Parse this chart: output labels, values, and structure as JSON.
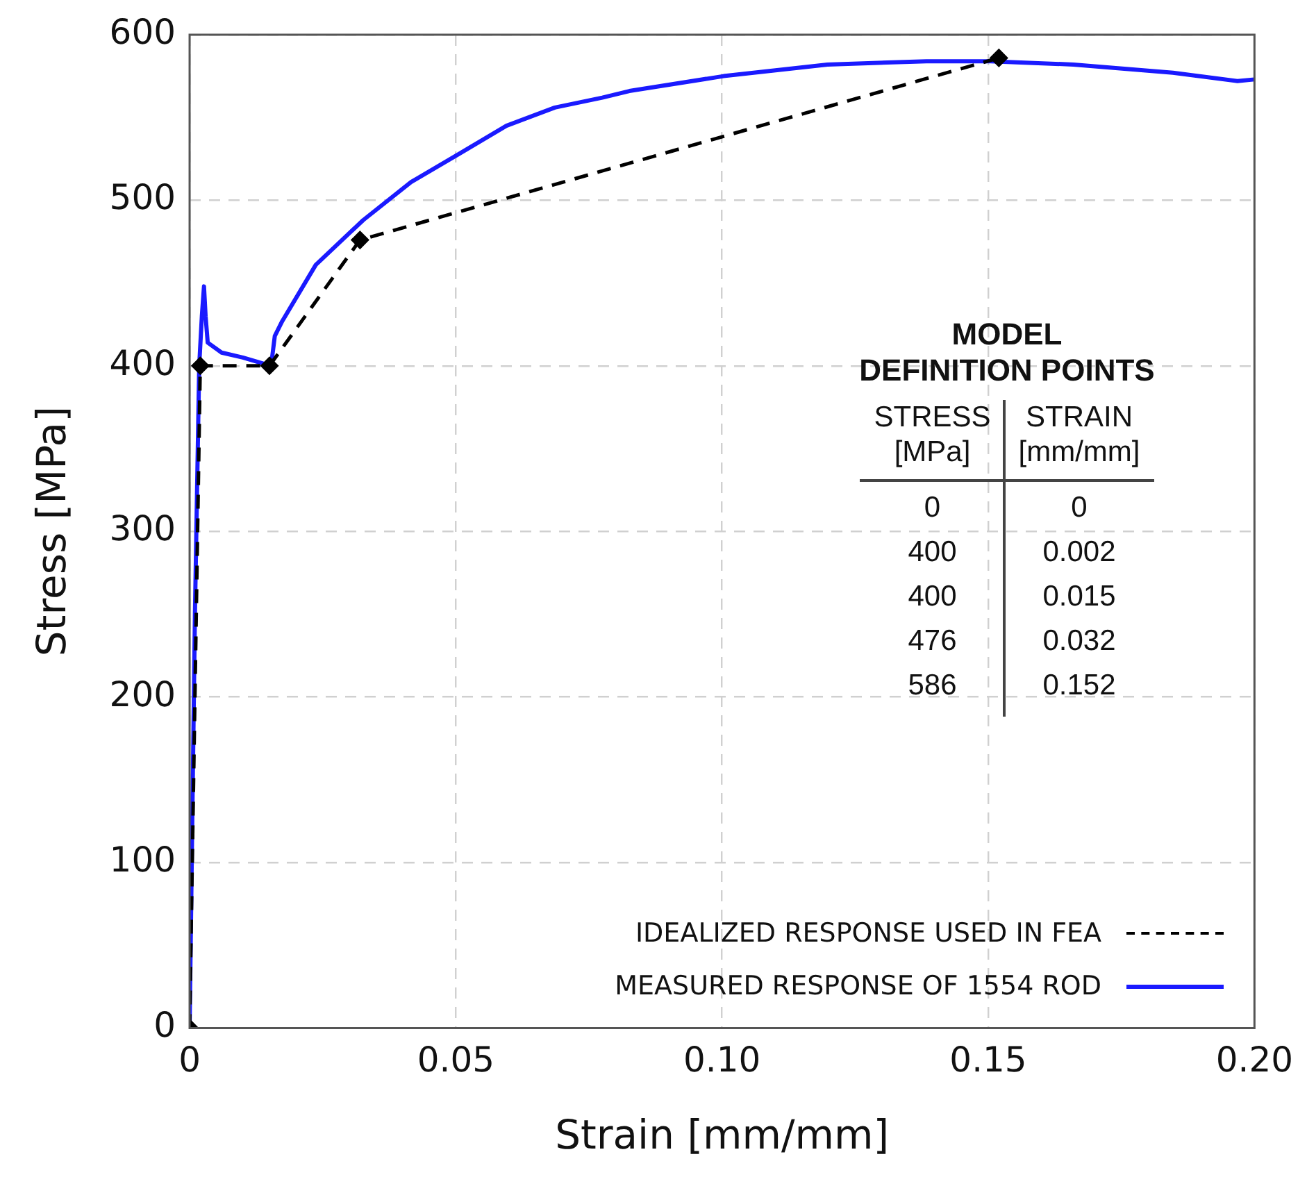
{
  "chart_data": {
    "type": "line",
    "xlabel": "Strain [mm/mm]",
    "ylabel": "Stress [MPa]",
    "xlim": [
      0,
      0.2
    ],
    "xticks": [
      0,
      0.05,
      {
        "value": 0.1,
        "label": "0.10"
      },
      0.15,
      {
        "value": 0.2,
        "label": "0.20"
      }
    ],
    "ylim": [
      0,
      600
    ],
    "yticks": [
      0,
      100,
      200,
      300,
      400,
      500,
      600
    ],
    "grid": true,
    "legend": "bottom right",
    "series": [
      {
        "name": "IDEALIZED RESPONSE USED IN FEA",
        "color": "#000000",
        "line_style": "dashed",
        "marker": "diamond",
        "x": [
          0,
          0.002,
          0.015,
          0.032,
          0.152
        ],
        "values": [
          0,
          400,
          400,
          476,
          586
        ]
      },
      {
        "name": "MEASURED RESPONSE OF 1554 ROD",
        "color": "#1a1aff",
        "line_style": "solid",
        "marker": "none",
        "x": [
          0,
          0.001,
          0.0018,
          0.0023,
          0.0027,
          0.003,
          0.0034,
          0.006,
          0.01,
          0.0153,
          0.016,
          0.0174,
          0.0237,
          0.0326,
          0.0416,
          0.0506,
          0.0595,
          0.0686,
          0.0775,
          0.0826,
          0.1003,
          0.1198,
          0.1384,
          0.1504,
          0.166,
          0.1847,
          0.1968,
          0.2
        ],
        "values": [
          0,
          250,
          400,
          430,
          448,
          430,
          414,
          408,
          405,
          400,
          418,
          427,
          461,
          488,
          511,
          528,
          545,
          556,
          562,
          566,
          575,
          582,
          584,
          584,
          582,
          577,
          572,
          573
        ]
      }
    ],
    "annotations": [
      "MODEL\nDEFINITION POINTS",
      "STRESS\n[MPa]",
      "STRAIN\n[mm/mm]",
      "0",
      "0",
      "400",
      "0.002",
      "400",
      "0.015",
      "476",
      "0.032",
      "586",
      "0.152"
    ]
  }
}
